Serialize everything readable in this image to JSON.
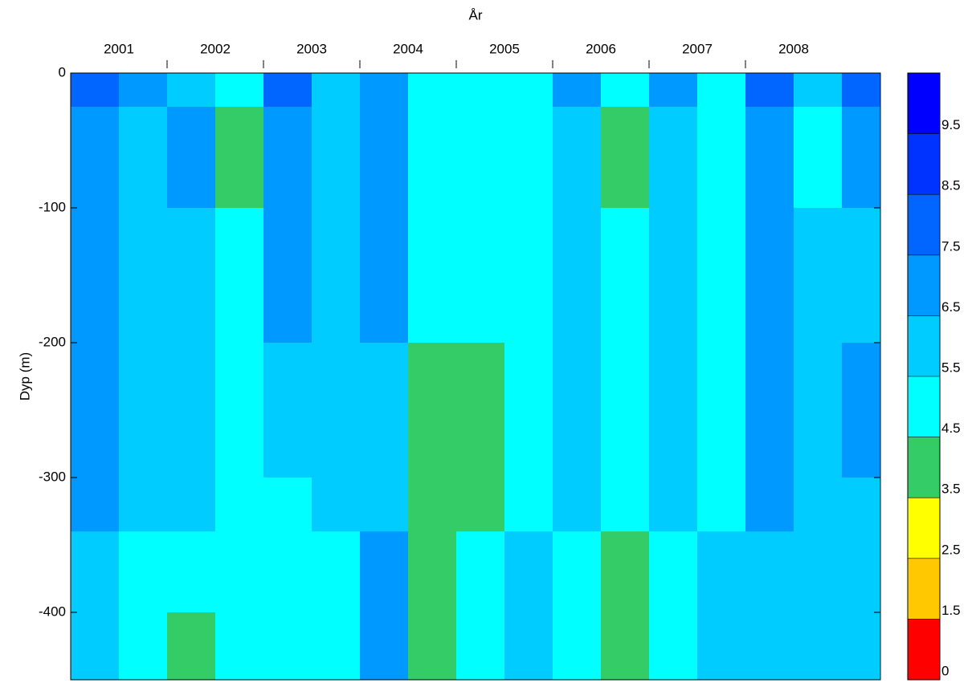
{
  "chart_data": {
    "type": "contour",
    "x_label": "År",
    "y_label": "Dyp (m)",
    "categories": [
      "2001",
      "2002",
      "2003",
      "2004",
      "2005",
      "2006",
      "2007",
      "2008"
    ],
    "xlim": [
      2001,
      2009.4
    ],
    "ylim": [
      -450,
      0
    ],
    "yticks": [
      0,
      -100,
      -200,
      -300,
      -400
    ],
    "x_edges": [
      2001,
      2001.5,
      2002,
      2002.5,
      2003,
      2003.5,
      2004,
      2004.5,
      2005,
      2005.5,
      2006,
      2006.5,
      2007,
      2007.5,
      2008,
      2008.5,
      2009,
      2009.4
    ],
    "y_edges": [
      0,
      -25,
      -100,
      -200,
      -300,
      -340,
      -400,
      -450
    ],
    "z": [
      [
        8,
        7,
        7,
        7,
        7,
        6,
        6
      ],
      [
        7,
        6,
        6,
        6,
        6,
        5,
        5
      ],
      [
        6,
        7,
        6,
        6,
        6,
        5,
        4
      ],
      [
        5,
        4,
        5,
        5,
        5,
        5,
        5
      ],
      [
        8,
        7,
        7,
        6,
        5,
        5,
        5
      ],
      [
        6,
        6,
        6,
        6,
        6,
        5,
        5
      ],
      [
        7,
        7,
        7,
        6,
        6,
        7,
        7
      ],
      [
        5,
        5,
        5,
        4,
        4,
        4,
        4
      ],
      [
        5,
        5,
        5,
        4,
        4,
        5,
        5
      ],
      [
        5,
        5,
        5,
        5,
        5,
        6,
        6
      ],
      [
        7,
        6,
        6,
        6,
        6,
        5,
        5
      ],
      [
        5,
        4,
        5,
        5,
        5,
        4,
        4
      ],
      [
        7,
        6,
        6,
        6,
        6,
        5,
        5
      ],
      [
        5,
        5,
        5,
        5,
        5,
        6,
        6
      ],
      [
        8,
        7,
        7,
        7,
        7,
        6,
        6
      ],
      [
        6,
        5,
        6,
        6,
        6,
        6,
        6
      ],
      [
        8,
        7,
        6,
        7,
        6,
        6,
        6
      ]
    ],
    "levels": [
      0,
      1.5,
      2.5,
      3.5,
      4.5,
      5.5,
      6.5,
      7.5,
      8.5,
      9.5
    ],
    "level_colors": [
      "#ff0000",
      "#ffc800",
      "#ffff00",
      "#33cc66",
      "#00ffff",
      "#00ccff",
      "#0099ff",
      "#0066ff",
      "#0033ff",
      "#0000ff"
    ]
  }
}
